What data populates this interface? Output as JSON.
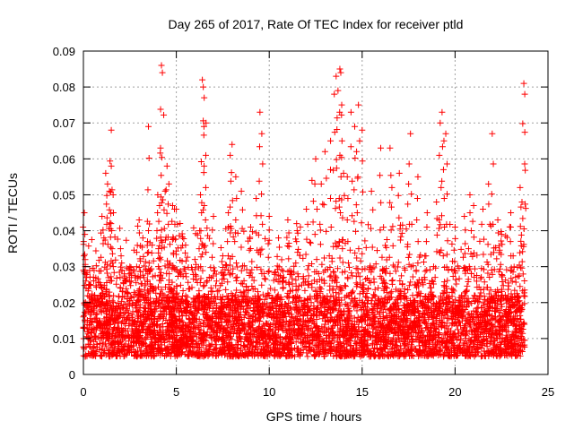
{
  "chart_data": {
    "type": "scatter",
    "title": "Day 265 of 2017, Rate Of TEC Index for receiver ptld",
    "xlabel": "GPS time / hours",
    "ylabel": "ROTI / TECUs",
    "xlim": [
      0,
      25
    ],
    "ylim": [
      0,
      0.09
    ],
    "xticks": [
      0,
      5,
      10,
      15,
      20,
      25
    ],
    "xtick_labels": [
      "0",
      "5",
      "10",
      "15",
      "20",
      "25"
    ],
    "yticks": [
      0,
      0.01,
      0.02,
      0.03,
      0.04,
      0.05,
      0.06,
      0.07,
      0.08,
      0.09
    ],
    "ytick_labels": [
      "0",
      "0.01",
      "0.02",
      "0.03",
      "0.04",
      "0.05",
      "0.06",
      "0.07",
      "0.08",
      "0.09"
    ],
    "grid": true,
    "marker": "plus",
    "color": "#ff0000",
    "series": [
      {
        "name": "ROTI",
        "x": [
          0.05,
          0.08,
          0.1,
          0.3,
          1.0,
          1.2,
          1.3,
          1.4,
          1.5,
          1.5,
          1.6,
          2.0,
          2.2,
          2.5,
          3.0,
          3.2,
          3.5,
          3.5,
          3.7,
          4.0,
          4.1,
          4.15,
          4.2,
          4.25,
          4.4,
          4.5,
          4.6,
          4.8,
          4.9,
          5.0,
          5.2,
          5.5,
          6.0,
          6.3,
          6.4,
          6.45,
          6.5,
          6.6,
          7.0,
          7.5,
          7.8,
          7.9,
          8.0,
          8.2,
          8.5,
          9.0,
          9.3,
          9.5,
          9.6,
          10.0,
          10.5,
          11.0,
          11.5,
          12.0,
          12.3,
          12.5,
          12.8,
          13.0,
          13.3,
          13.5,
          13.6,
          13.7,
          13.8,
          13.85,
          13.9,
          14.0,
          14.2,
          14.4,
          14.6,
          14.7,
          14.8,
          15.0,
          15.5,
          16.0,
          16.5,
          16.6,
          17.0,
          17.5,
          17.6,
          18.0,
          18.5,
          19.0,
          19.2,
          19.3,
          19.4,
          19.5,
          20.0,
          20.5,
          20.8,
          21.0,
          21.5,
          21.8,
          22.0,
          22.3,
          22.5,
          23.0,
          23.5,
          23.6,
          23.7,
          23.75
        ],
        "y": [
          0.045,
          0.039,
          0.03,
          0.025,
          0.044,
          0.056,
          0.053,
          0.051,
          0.058,
          0.068,
          0.05,
          0.035,
          0.028,
          0.03,
          0.043,
          0.038,
          0.069,
          0.04,
          0.036,
          0.05,
          0.047,
          0.063,
          0.086,
          0.084,
          0.051,
          0.058,
          0.053,
          0.047,
          0.046,
          0.046,
          0.042,
          0.036,
          0.032,
          0.05,
          0.082,
          0.08,
          0.077,
          0.07,
          0.044,
          0.033,
          0.045,
          0.061,
          0.064,
          0.055,
          0.051,
          0.041,
          0.049,
          0.073,
          0.067,
          0.044,
          0.038,
          0.043,
          0.04,
          0.046,
          0.054,
          0.06,
          0.053,
          0.062,
          0.065,
          0.078,
          0.083,
          0.079,
          0.085,
          0.084,
          0.075,
          0.056,
          0.055,
          0.073,
          0.069,
          0.062,
          0.075,
          0.068,
          0.051,
          0.063,
          0.063,
          0.052,
          0.056,
          0.053,
          0.067,
          0.055,
          0.045,
          0.048,
          0.07,
          0.073,
          0.065,
          0.067,
          0.041,
          0.044,
          0.05,
          0.047,
          0.046,
          0.053,
          0.067,
          0.043,
          0.039,
          0.045,
          0.052,
          0.048,
          0.081,
          0.078
        ]
      }
    ],
    "annotations": []
  },
  "background_density": {
    "description_of_bulk": "dense band of points between 0.005 and 0.03 TECUs across the full 0-23.75 h range",
    "x_range": [
      0,
      23.75
    ],
    "baseline_low": 0.005,
    "baseline_high": 0.03
  }
}
